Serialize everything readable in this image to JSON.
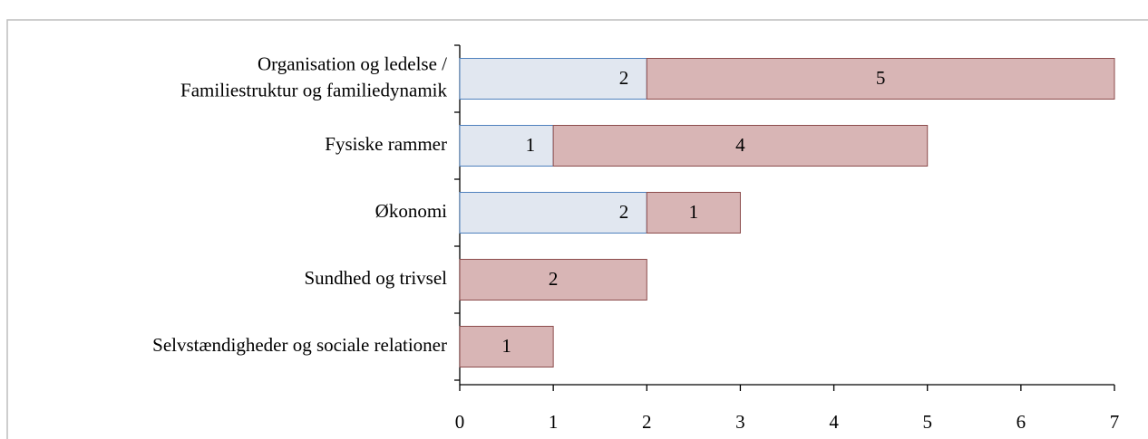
{
  "chart_data": {
    "type": "stacked-bar-horizontal",
    "categories": [
      "Organisation og ledelse / Familiestruktur og familiedynamik",
      "Fysiske rammer",
      "Økonomi",
      "Sundhed og trivsel",
      "Selvstændigheder og sociale relationer"
    ],
    "series": [
      {
        "color": "#e1e7f0",
        "edge": "#4f81bd",
        "values": [
          2,
          1,
          2,
          null,
          null
        ]
      },
      {
        "color": "#d8b5b5",
        "edge": "#8c4c4c",
        "values": [
          5,
          4,
          1,
          2,
          1
        ]
      }
    ],
    "xlim": [
      0,
      7
    ],
    "xticks": [
      0,
      1,
      2,
      3,
      4,
      5,
      6,
      7
    ]
  }
}
